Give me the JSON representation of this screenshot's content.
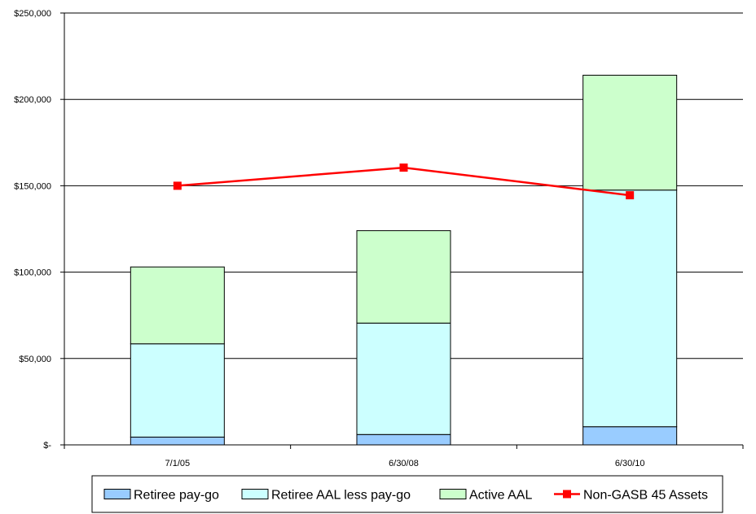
{
  "chart_data": {
    "type": "bar",
    "stacked": true,
    "categories": [
      "7/1/05",
      "6/30/08",
      "6/30/10"
    ],
    "series": [
      {
        "name": "Retiree pay-go",
        "kind": "bar",
        "color": "#99ccff",
        "values": [
          4500,
          6000,
          10500
        ]
      },
      {
        "name": "Retiree AAL less pay-go",
        "kind": "bar",
        "color": "#ccffff",
        "values": [
          54000,
          64500,
          137000
        ]
      },
      {
        "name": "Active AAL",
        "kind": "bar",
        "color": "#ccffcc",
        "values": [
          44500,
          53500,
          66500
        ]
      },
      {
        "name": "Non-GASB 45 Assets",
        "kind": "line",
        "color": "#ff0000",
        "values": [
          150000,
          160500,
          144500
        ]
      }
    ],
    "ylim": [
      0,
      250000
    ],
    "yticks": [
      0,
      50000,
      100000,
      150000,
      200000,
      250000
    ],
    "ytick_labels": [
      "$-",
      "$50,000",
      "$100,000",
      "$150,000",
      "$200,000",
      "$250,000"
    ],
    "grid": true,
    "legend_position": "bottom",
    "title": "",
    "xlabel": "",
    "ylabel": ""
  }
}
